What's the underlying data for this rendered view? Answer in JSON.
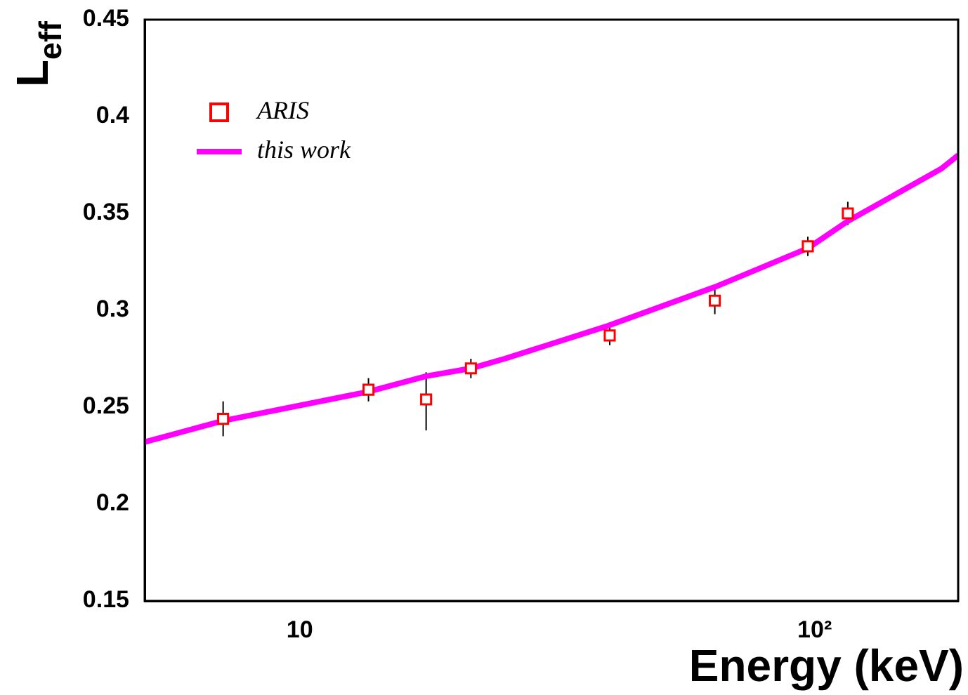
{
  "chart_data": {
    "type": "scatter",
    "xlabel": "Energy (keV)",
    "ylabel": "L$_{eff}$",
    "log": "x",
    "xlim": [
      5,
      190
    ],
    "xticks": [
      10,
      {
        "value": 100,
        "label": "10²"
      }
    ],
    "ylim": [
      0.15,
      0.45
    ],
    "yticks": [
      0.15,
      0.2,
      0.25,
      0.3,
      0.35,
      0.4,
      0.45
    ],
    "grid": false,
    "legend": "top left",
    "series": [
      {
        "name": "ARIS",
        "color": "#ff0000",
        "marker": "square",
        "x": [
          7.1,
          13.6,
          17.6,
          21.5,
          40,
          64,
          97,
          116
        ],
        "values": [
          0.244,
          0.259,
          0.254,
          0.27,
          0.287,
          0.305,
          0.333,
          0.35
        ],
        "errors": [
          0.009,
          0.006,
          [
            0.238,
            0.268
          ],
          0.005,
          0.005,
          0.007,
          0.005,
          0.006
        ]
      },
      {
        "name": "this work",
        "type": "line",
        "color": "#ff00ff",
        "marker": "none",
        "x": [
          5,
          7.1,
          13.6,
          17.6,
          21.5,
          25,
          39.7,
          64,
          97,
          116,
          176,
          190
        ],
        "values": [
          0.232,
          0.243,
          0.258,
          0.266,
          0.27,
          0.275,
          0.292,
          0.312,
          0.332,
          0.346,
          0.373,
          0.38
        ]
      }
    ]
  }
}
